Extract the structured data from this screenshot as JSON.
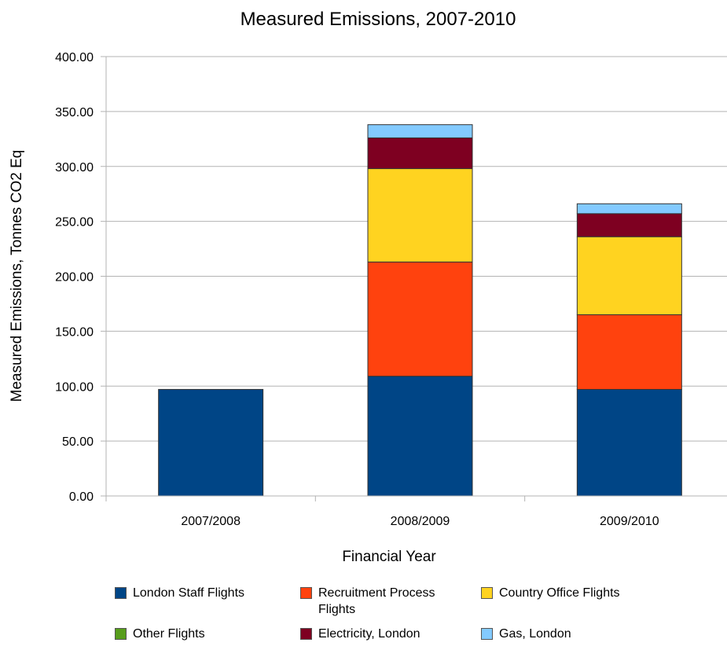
{
  "chart_data": {
    "type": "bar",
    "stacked": true,
    "title": "Measured Emissions, 2007-2010",
    "xlabel": "Financial Year",
    "ylabel": "Measured Emissions, Tonnes CO2 Eq",
    "ylim": [
      0,
      400
    ],
    "yticks": [
      "0.00",
      "50.00",
      "100.00",
      "150.00",
      "200.00",
      "250.00",
      "300.00",
      "350.00",
      "400.00"
    ],
    "grid": true,
    "legend_position": "bottom",
    "categories": [
      "2007/2008",
      "2008/2009",
      "2009/2010"
    ],
    "series": [
      {
        "name": "London Staff Flights",
        "color": "#004586",
        "values": [
          97,
          109,
          97
        ]
      },
      {
        "name": "Recruitment Process Flights",
        "color": "#ff420e",
        "values": [
          0,
          104,
          68
        ]
      },
      {
        "name": "Country Office Flights",
        "color": "#ffd320",
        "values": [
          0,
          85,
          71
        ]
      },
      {
        "name": "Other Flights",
        "color": "#579d1c",
        "values": [
          0,
          0,
          0
        ]
      },
      {
        "name": "Electricity, London",
        "color": "#7e0021",
        "values": [
          0,
          28,
          21
        ]
      },
      {
        "name": "Gas, London",
        "color": "#83caff",
        "values": [
          0,
          12,
          9
        ]
      }
    ]
  }
}
